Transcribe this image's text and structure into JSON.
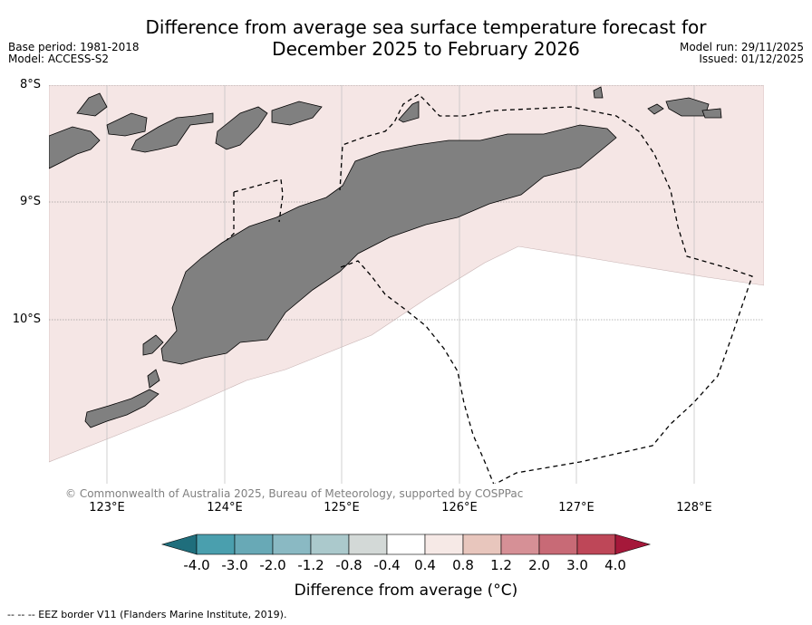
{
  "title": {
    "line1": "Difference from average sea surface temperature forecast for",
    "line2": "December 2025 to February 2026"
  },
  "meta": {
    "base_period": "Base period: 1981-2018",
    "model": "Model: ACCESS-S2",
    "model_run": "Model run: 29/11/2025",
    "issued": "Issued: 01/12/2025"
  },
  "axes": {
    "latitudes": [
      "8°S",
      "9°S",
      "10°S"
    ],
    "longitudes": [
      "123°E",
      "124°E",
      "125°E",
      "126°E",
      "127°E",
      "128°E"
    ]
  },
  "map_layers": {
    "land": "grey-fill",
    "anomaly_0.4_to_0.8": "#f5e6e5",
    "eez_border": "dashed"
  },
  "colorbar": {
    "ticks": [
      "-4.0",
      "-3.0",
      "-2.0",
      "-1.2",
      "-0.8",
      "-0.4",
      "0.4",
      "0.8",
      "1.2",
      "2.0",
      "3.0",
      "4.0"
    ],
    "colors": [
      "#1f6e7c",
      "#4a9fae",
      "#68a9b6",
      "#8ab9c3",
      "#abc9cc",
      "#d3d9d7",
      "#ffffff",
      "#f6e9e6",
      "#e8c6bd",
      "#d69096",
      "#c86a76",
      "#be4758",
      "#a5183a"
    ],
    "label": "Difference from average (°C)"
  },
  "copyright": "© Commonwealth of Australia 2025, Bureau of Meteorology, supported by COSPPac",
  "legend_eez": "-- -- -- EEZ border V11 (Flanders Marine Institute, 2019)."
}
